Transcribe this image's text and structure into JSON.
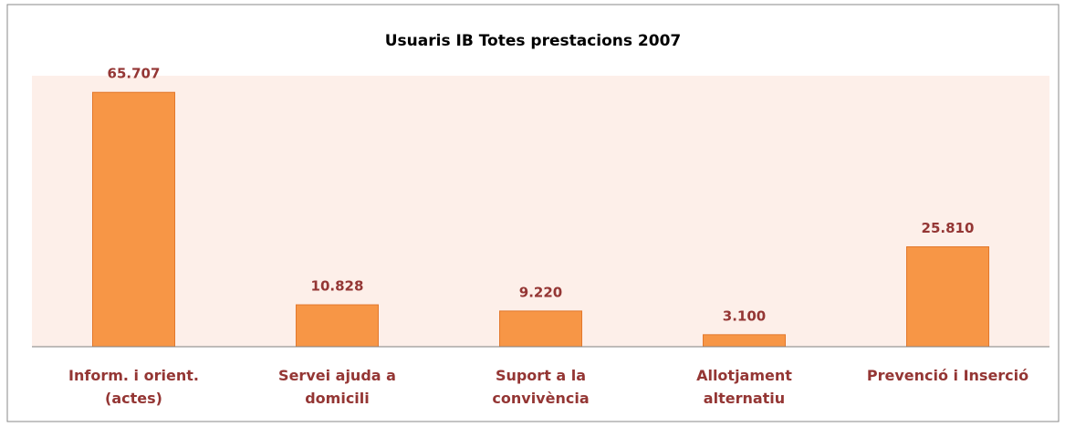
{
  "chart_data": {
    "type": "bar",
    "title": "Usuaris IB Totes prestacions 2007",
    "categories": [
      "Inform. i orient.\n(actes)",
      "Servei ajuda a\ndomicili",
      "Suport a la\nconvivència",
      "Allotjament\nalternatiu",
      "Prevenció i Inserció"
    ],
    "values": [
      65707,
      10828,
      9220,
      3100,
      25810
    ],
    "value_labels": [
      "65.707",
      "10.828",
      "9.220",
      "3.100",
      "25.810"
    ],
    "color": "#f79646",
    "ylim": [
      0,
      70000
    ]
  }
}
